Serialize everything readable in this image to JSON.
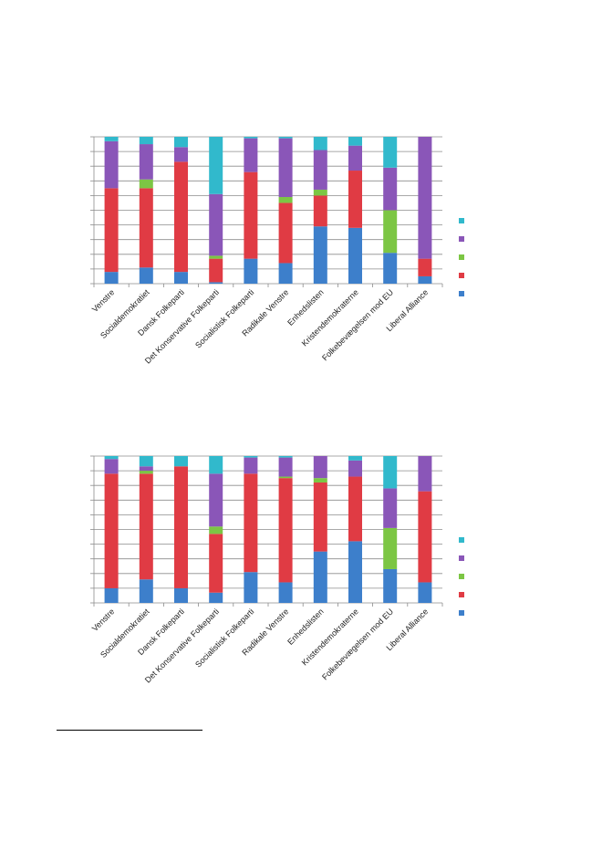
{
  "colors": {
    "s1": "#3d7fcb",
    "s2": "#e03b44",
    "s3": "#7cc644",
    "s4": "#8a56b8",
    "s5": "#31b9cc",
    "grid": "#8c8c8c"
  },
  "chart_data": [
    {
      "type": "bar",
      "stacked": true,
      "normalized": true,
      "grid": true,
      "legend_position": "right",
      "categories": [
        "Venstre",
        "Socialdemokratiet",
        "Dansk Folkeparti",
        "Det Konservative Folkeparti",
        "Socialistisk Folkeparti",
        "Radikale Venstre",
        "Enhedslisten",
        "Kristendemokraterne",
        "Folkebevægelsen mod EU",
        "Liberal Alliance"
      ],
      "series": [
        {
          "color": "#3d7fcb",
          "values": [
            8,
            11,
            8,
            1,
            17,
            14,
            39,
            38,
            21,
            5
          ]
        },
        {
          "color": "#e03b44",
          "values": [
            57,
            54,
            75,
            16,
            59,
            41,
            21,
            39,
            0,
            12
          ]
        },
        {
          "color": "#7cc644",
          "values": [
            0,
            6,
            0,
            2,
            0,
            4,
            4,
            0,
            29,
            0
          ]
        },
        {
          "color": "#8a56b8",
          "values": [
            32,
            24,
            10,
            42,
            23,
            40,
            27,
            17,
            29,
            83
          ]
        },
        {
          "color": "#31b9cc",
          "values": [
            3,
            5,
            7,
            39,
            1,
            1,
            9,
            6,
            21,
            0
          ]
        }
      ]
    },
    {
      "type": "bar",
      "stacked": true,
      "normalized": true,
      "grid": true,
      "legend_position": "right",
      "categories": [
        "Venstre",
        "Socialdemokratiet",
        "Dansk Folkeparti",
        "Det Konservative Folkeparti",
        "Socialistisk Folkeparti",
        "Radikale Venstre",
        "Enhedslisten",
        "Kristendemokraterne",
        "Folkebevægelsen mod EU",
        "Liberal Alliance"
      ],
      "series": [
        {
          "color": "#3d7fcb",
          "values": [
            10,
            16,
            10,
            7,
            21,
            14,
            35,
            42,
            23,
            14
          ]
        },
        {
          "color": "#e03b44",
          "values": [
            78,
            72,
            83,
            40,
            67,
            71,
            47,
            44,
            0,
            62
          ]
        },
        {
          "color": "#7cc644",
          "values": [
            0,
            2,
            0,
            5,
            0,
            1,
            3,
            0,
            28,
            0
          ]
        },
        {
          "color": "#8a56b8",
          "values": [
            10,
            3,
            0,
            36,
            11,
            13,
            15,
            11,
            27,
            24
          ]
        },
        {
          "color": "#31b9cc",
          "values": [
            2,
            7,
            7,
            12,
            1,
            1,
            0,
            3,
            22,
            0
          ]
        }
      ]
    }
  ]
}
